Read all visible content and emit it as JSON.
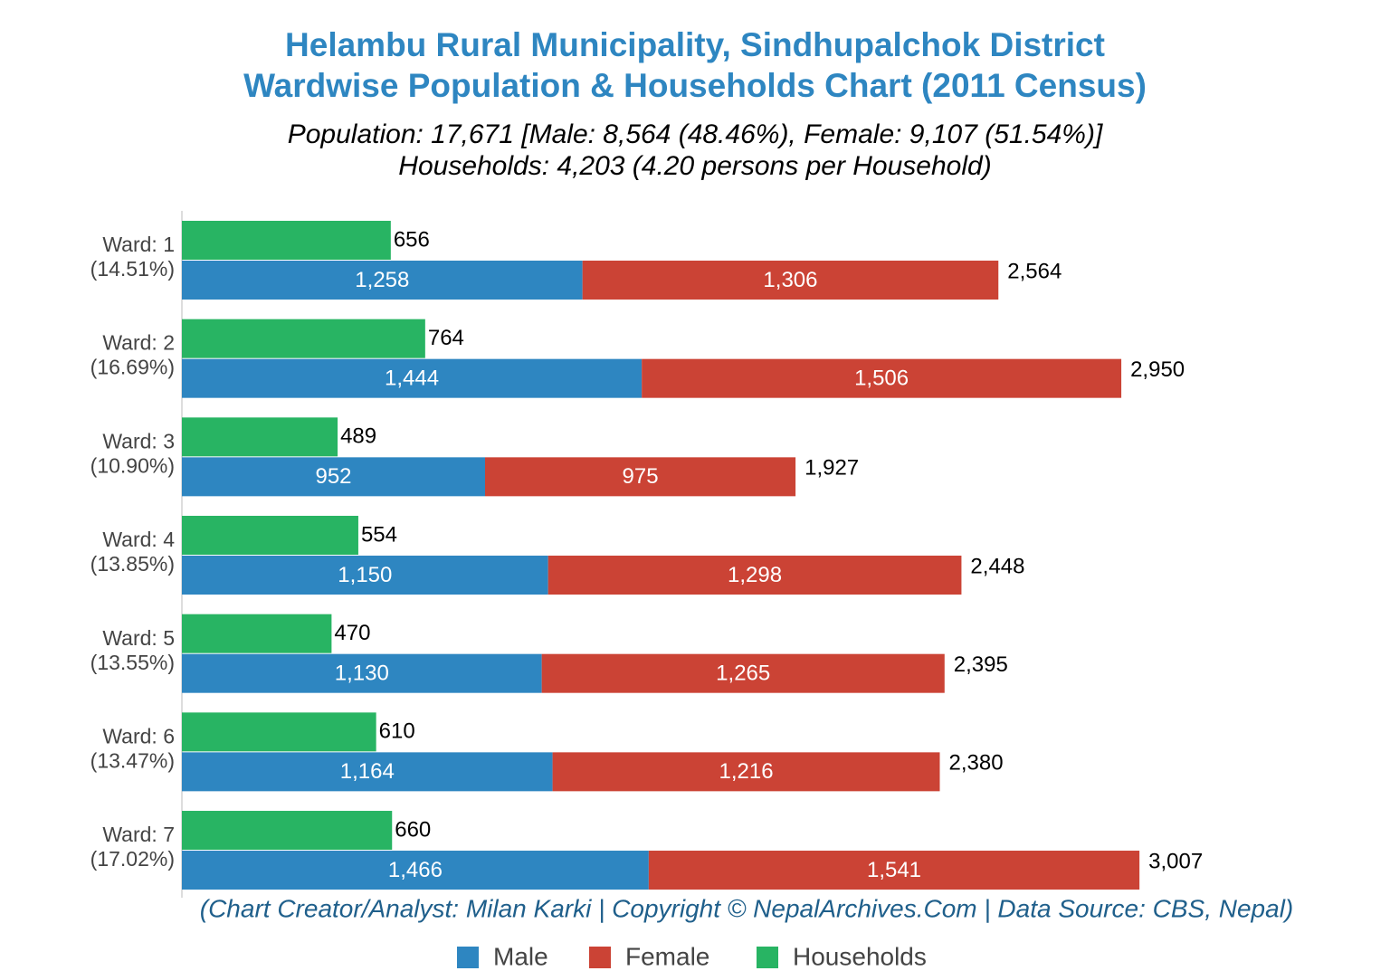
{
  "chart_data": {
    "type": "bar",
    "title": [
      "Helambu Rural Municipality, Sindhupalchok District",
      "Wardwise Population & Households Chart (2011 Census)"
    ],
    "subtitle": [
      "Population: 17,671 [Male: 8,564 (48.46%), Female: 9,107 (51.54%)]",
      "Households: 4,203 (4.20 persons per Household)"
    ],
    "source": "(Chart Creator/Analyst: Milan Karki | Copyright © NepalArchives.Com | Data Source: CBS, Nepal)",
    "categories": [
      "Ward: 1",
      "Ward: 2",
      "Ward: 3",
      "Ward: 4",
      "Ward: 5",
      "Ward: 6",
      "Ward: 7"
    ],
    "category_shares": [
      "(14.51%)",
      "(16.69%)",
      "(10.90%)",
      "(13.85%)",
      "(13.55%)",
      "(13.47%)",
      "(17.02%)"
    ],
    "series": [
      {
        "name": "Male",
        "color": "#2e86c1",
        "stack": "population",
        "values": [
          1258,
          1444,
          952,
          1150,
          1130,
          1164,
          1466
        ],
        "value_labels": [
          "1,258",
          "1,444",
          "952",
          "1,150",
          "1,130",
          "1,164",
          "1,466"
        ]
      },
      {
        "name": "Female",
        "color": "#cb4335",
        "stack": "population",
        "values": [
          1306,
          1506,
          975,
          1298,
          1265,
          1216,
          1541
        ],
        "value_labels": [
          "1,306",
          "1,506",
          "975",
          "1,298",
          "1,265",
          "1,216",
          "1,541"
        ]
      },
      {
        "name": "Households",
        "color": "#28b463",
        "stack": "households",
        "values": [
          656,
          764,
          489,
          554,
          470,
          610,
          660
        ]
      }
    ],
    "totals": [
      2564,
      2950,
      1927,
      2448,
      2395,
      2380,
      3007
    ],
    "total_labels": [
      "2,564",
      "2,950",
      "1,927",
      "2,448",
      "2,395",
      "2,380",
      "3,007"
    ],
    "xlim": [
      0,
      3700
    ],
    "orientation": "horizontal",
    "legend": "bottom"
  }
}
